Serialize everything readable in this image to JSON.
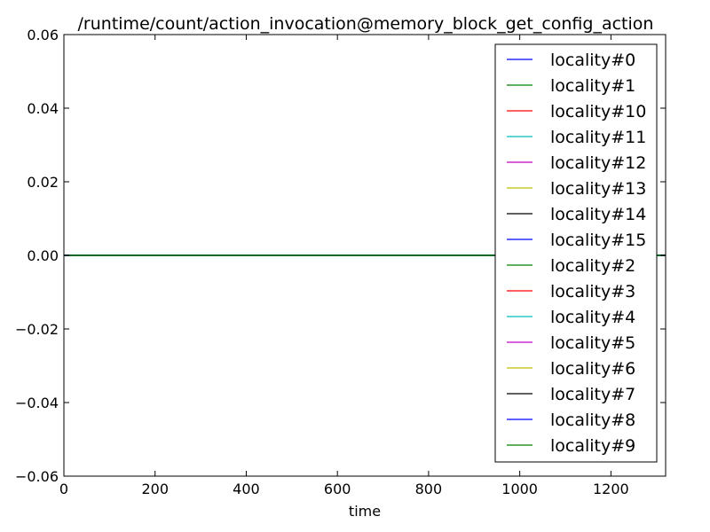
{
  "chart_data": {
    "type": "line",
    "title": "/runtime/count/action_invocation@memory_block_get_config_action",
    "xlabel": "time",
    "ylabel": "",
    "xlim": [
      0,
      1320
    ],
    "ylim": [
      -0.06,
      0.06
    ],
    "xticks": [
      0,
      200,
      400,
      600,
      800,
      1000,
      1200
    ],
    "xtick_labels": [
      "0",
      "200",
      "400",
      "600",
      "800",
      "1000",
      "1200"
    ],
    "yticks": [
      0.06,
      0.04,
      0.02,
      0.0,
      -0.02,
      -0.04,
      -0.06
    ],
    "ytick_labels": [
      "0.06",
      "0.04",
      "0.02",
      "0.00",
      "−0.02",
      "−0.04",
      "−0.06"
    ],
    "grid": false,
    "legend_position": "top-right",
    "x": [
      0,
      1320
    ],
    "series": [
      {
        "name": "locality#0",
        "color": "#0000ff",
        "values": [
          0,
          0
        ]
      },
      {
        "name": "locality#1",
        "color": "#008000",
        "values": [
          0,
          0
        ]
      },
      {
        "name": "locality#10",
        "color": "#ff0000",
        "values": [
          0,
          0
        ]
      },
      {
        "name": "locality#11",
        "color": "#00bfbf",
        "values": [
          0,
          0
        ]
      },
      {
        "name": "locality#12",
        "color": "#bf00bf",
        "values": [
          0,
          0
        ]
      },
      {
        "name": "locality#13",
        "color": "#bfbf00",
        "values": [
          0,
          0
        ]
      },
      {
        "name": "locality#14",
        "color": "#000000",
        "values": [
          0,
          0
        ]
      },
      {
        "name": "locality#15",
        "color": "#0000ff",
        "values": [
          0,
          0
        ]
      },
      {
        "name": "locality#2",
        "color": "#008000",
        "values": [
          0,
          0
        ]
      },
      {
        "name": "locality#3",
        "color": "#ff0000",
        "values": [
          0,
          0
        ]
      },
      {
        "name": "locality#4",
        "color": "#00bfbf",
        "values": [
          0,
          0
        ]
      },
      {
        "name": "locality#5",
        "color": "#bf00bf",
        "values": [
          0,
          0
        ]
      },
      {
        "name": "locality#6",
        "color": "#bfbf00",
        "values": [
          0,
          0
        ]
      },
      {
        "name": "locality#7",
        "color": "#000000",
        "values": [
          0,
          0
        ]
      },
      {
        "name": "locality#8",
        "color": "#0000ff",
        "values": [
          0,
          0
        ]
      },
      {
        "name": "locality#9",
        "color": "#008000",
        "values": [
          0,
          0
        ]
      }
    ]
  }
}
